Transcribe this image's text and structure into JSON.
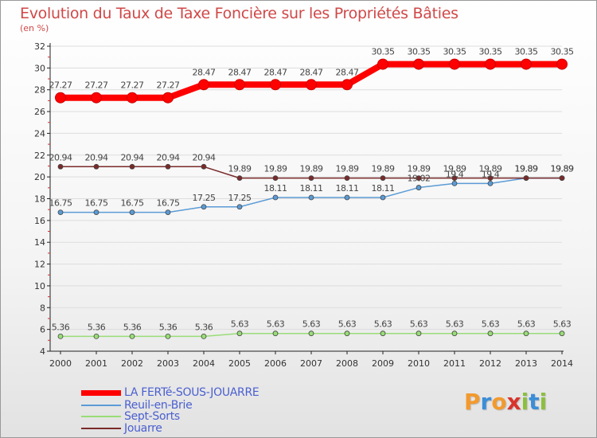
{
  "title": "Evolution du Taux de Taxe Foncière sur les Propriétés Bâties",
  "unit_label": "(en %)",
  "logo": {
    "text": "Proxiti",
    "letters": [
      {
        "ch": "P",
        "color": "#f29a2e"
      },
      {
        "ch": "r",
        "color": "#3b8ed8"
      },
      {
        "ch": "o",
        "color": "#f29a2e"
      },
      {
        "ch": "x",
        "color": "#d8342c"
      },
      {
        "ch": "i",
        "color": "#8cbf3f"
      },
      {
        "ch": "t",
        "color": "#3b8ed8"
      },
      {
        "ch": "i",
        "color": "#8cbf3f"
      }
    ]
  },
  "chart_data": {
    "type": "line",
    "title": "Evolution du Taux de Taxe Foncière sur les Propriétés Bâties",
    "ylabel": "(en %)",
    "xlabel": "",
    "x": [
      "2000",
      "2001",
      "2002",
      "2003",
      "2004",
      "2005",
      "2006",
      "2007",
      "2008",
      "2009",
      "2010",
      "2011",
      "2012",
      "2013",
      "2014"
    ],
    "ylim": [
      4,
      32
    ],
    "yticks": [
      4,
      6,
      8,
      10,
      12,
      14,
      16,
      18,
      20,
      22,
      24,
      26,
      28,
      30,
      32
    ],
    "series": [
      {
        "name": "LA FERTé-SOUS-JOUARRE",
        "color": "#ff0000",
        "values": [
          27.27,
          27.27,
          27.27,
          27.27,
          28.47,
          28.47,
          28.47,
          28.47,
          28.47,
          30.35,
          30.35,
          30.35,
          30.35,
          30.35,
          30.35
        ],
        "labels": [
          "27.27",
          "27.27",
          "27.27",
          "27.27",
          "28.47",
          "28.47",
          "28.47",
          "28.47",
          "28.47",
          "30.35",
          "30.35",
          "30.35",
          "30.35",
          "30.35",
          "30.35"
        ]
      },
      {
        "name": "Reuil-en-Brie",
        "color": "#5b9bd5",
        "values": [
          16.75,
          16.75,
          16.75,
          16.75,
          17.25,
          17.25,
          18.11,
          18.11,
          18.11,
          18.11,
          19.02,
          19.4,
          19.4,
          19.89,
          19.89
        ],
        "labels": [
          "16.75",
          "16.75",
          "16.75",
          "16.75",
          "17.25",
          "17.25",
          "18.11",
          "18.11",
          "18.11",
          "18.11",
          "19.02",
          "19.4",
          "19.4",
          "19.89",
          "19.89"
        ]
      },
      {
        "name": "Sept-Sorts",
        "color": "#99dd77",
        "values": [
          5.36,
          5.36,
          5.36,
          5.36,
          5.36,
          5.63,
          5.63,
          5.63,
          5.63,
          5.63,
          5.63,
          5.63,
          5.63,
          5.63,
          5.63
        ],
        "labels": [
          "5.36",
          "5.36",
          "5.36",
          "5.36",
          "5.36",
          "5.63",
          "5.63",
          "5.63",
          "5.63",
          "5.63",
          "5.63",
          "5.63",
          "5.63",
          "5.63",
          "5.63"
        ]
      },
      {
        "name": "Jouarre",
        "color": "#7a2a2a",
        "values": [
          20.94,
          20.94,
          20.94,
          20.94,
          20.94,
          19.89,
          19.89,
          19.89,
          19.89,
          19.89,
          19.89,
          19.89,
          19.89,
          19.89,
          19.89
        ],
        "labels": [
          "20.94",
          "20.94",
          "20.94",
          "20.94",
          "20.94",
          "19.89",
          "19.89",
          "19.89",
          "19.89",
          "19.89",
          "19.89",
          "19.89",
          "19.89",
          "19.89",
          "19.89"
        ]
      }
    ],
    "legend_position": "bottom-left"
  }
}
